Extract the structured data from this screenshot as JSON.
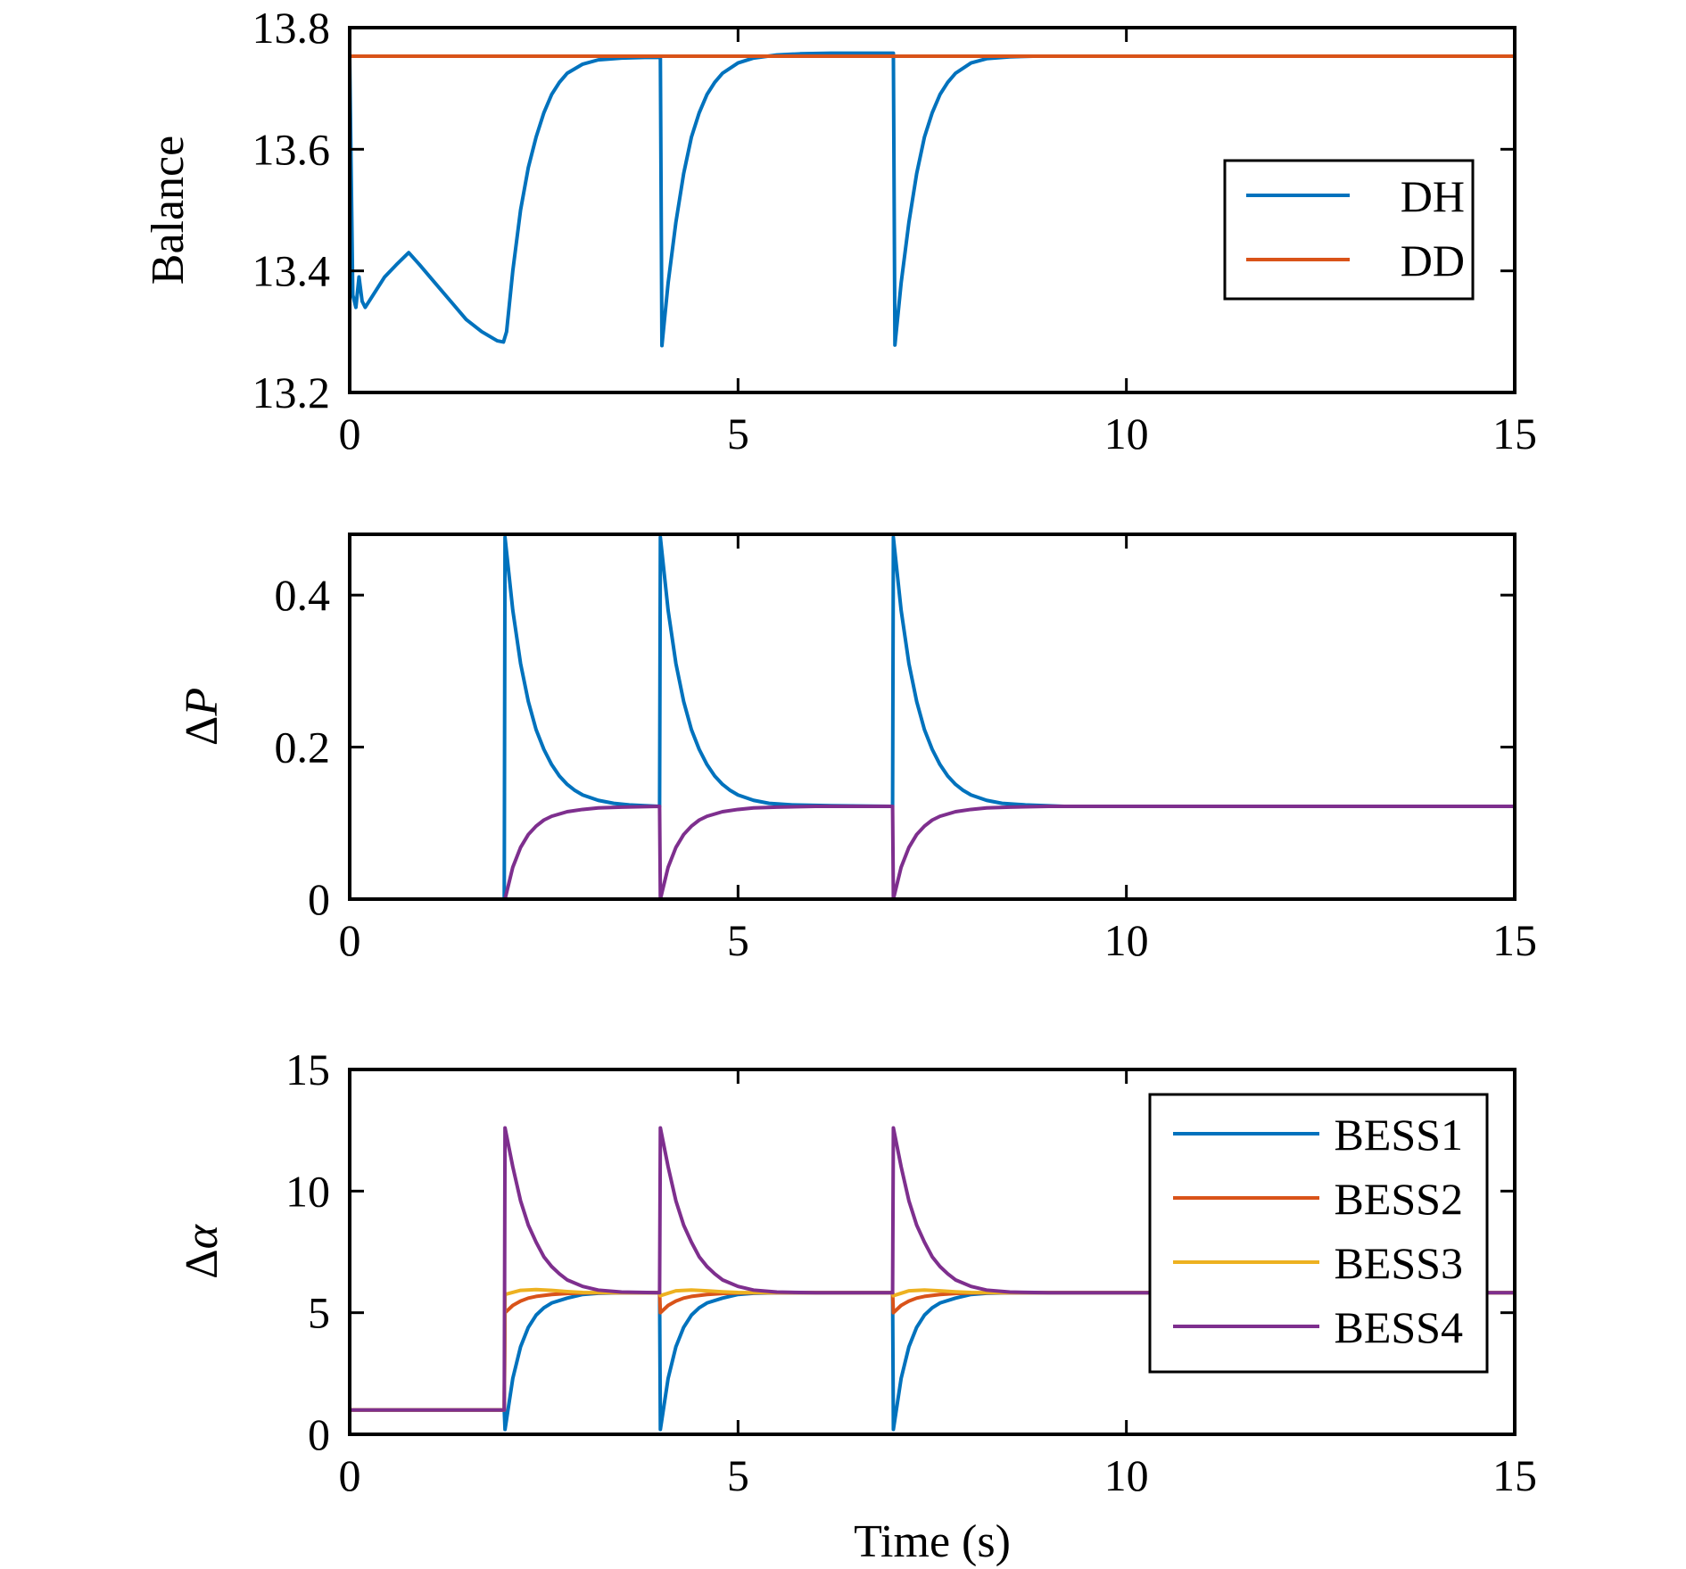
{
  "colors": {
    "blue": "#0072BD",
    "orange": "#D95319",
    "yellow": "#EDB120",
    "purple": "#7E2F8E",
    "axis": "#000000",
    "background": "#ffffff"
  },
  "chart_data": [
    {
      "type": "line",
      "ylabel": "Balance",
      "ylabel_style": "plain",
      "xlim": [
        0,
        15
      ],
      "ylim": [
        13.2,
        13.8
      ],
      "xticks": [
        0,
        5,
        10,
        15
      ],
      "yticks": [
        13.2,
        13.4,
        13.6,
        13.8
      ],
      "xtick_labels": [
        "0",
        "5",
        "10",
        "15"
      ],
      "ytick_labels": [
        "13.2",
        "13.4",
        "13.6",
        "13.8"
      ],
      "grid": false,
      "legend": "right",
      "series": [
        {
          "name": "DH",
          "color": "#0072BD",
          "x": [
            0,
            0.04,
            0.08,
            0.12,
            0.16,
            0.2,
            0.3,
            0.45,
            0.6,
            0.76,
            0.9,
            1.1,
            1.3,
            1.5,
            1.7,
            1.9,
            1.98,
            2.02,
            2.1,
            2.2,
            2.3,
            2.4,
            2.5,
            2.6,
            2.7,
            2.8,
            3.0,
            3.2,
            3.5,
            3.8,
            3.99,
            4.0,
            4.02,
            4.1,
            4.2,
            4.3,
            4.4,
            4.5,
            4.6,
            4.7,
            4.8,
            5.0,
            5.2,
            5.5,
            5.8,
            6.2,
            6.6,
            6.99,
            7.0,
            7.02,
            7.1,
            7.2,
            7.3,
            7.4,
            7.5,
            7.6,
            7.7,
            7.8,
            8.0,
            8.2,
            8.5,
            8.8,
            9.5,
            15
          ],
          "y": [
            13.75,
            13.36,
            13.34,
            13.39,
            13.35,
            13.34,
            13.36,
            13.39,
            13.41,
            13.43,
            13.41,
            13.38,
            13.35,
            13.32,
            13.3,
            13.285,
            13.283,
            13.3,
            13.4,
            13.5,
            13.57,
            13.62,
            13.66,
            13.69,
            13.71,
            13.725,
            13.74,
            13.747,
            13.75,
            13.751,
            13.751,
            13.752,
            13.277,
            13.38,
            13.48,
            13.56,
            13.62,
            13.66,
            13.69,
            13.71,
            13.725,
            13.742,
            13.75,
            13.755,
            13.757,
            13.758,
            13.758,
            13.758,
            13.758,
            13.278,
            13.38,
            13.48,
            13.56,
            13.62,
            13.66,
            13.69,
            13.71,
            13.725,
            13.742,
            13.749,
            13.752,
            13.753,
            13.753,
            13.753
          ]
        },
        {
          "name": "DD",
          "color": "#D95319",
          "x": [
            0,
            15
          ],
          "y": [
            13.753,
            13.753
          ]
        }
      ]
    },
    {
      "type": "line",
      "ylabel": "ΔP",
      "ylabel_style": "delta-italic",
      "xlim": [
        0,
        15
      ],
      "ylim": [
        0,
        0.48
      ],
      "xticks": [
        0,
        5,
        10,
        15
      ],
      "yticks": [
        0,
        0.2,
        0.4
      ],
      "xtick_labels": [
        "0",
        "5",
        "10",
        "15"
      ],
      "ytick_labels": [
        "0",
        "0.2",
        "0.4"
      ],
      "grid": false,
      "legend": "none",
      "series": [
        {
          "color": "#0072BD",
          "x": [
            0,
            1.99,
            2.0,
            2.1,
            2.2,
            2.3,
            2.4,
            2.5,
            2.6,
            2.7,
            2.8,
            2.9,
            3.0,
            3.2,
            3.4,
            3.6,
            3.8,
            3.99,
            4.0,
            4.1,
            4.2,
            4.3,
            4.4,
            4.5,
            4.6,
            4.7,
            4.8,
            4.9,
            5.0,
            5.2,
            5.4,
            5.7,
            6.2,
            6.99,
            7.0,
            7.1,
            7.2,
            7.3,
            7.4,
            7.5,
            7.6,
            7.7,
            7.8,
            7.9,
            8.0,
            8.2,
            8.4,
            8.7,
            9.2,
            15
          ],
          "y": [
            0,
            0,
            0.476,
            0.38,
            0.31,
            0.26,
            0.223,
            0.197,
            0.177,
            0.162,
            0.151,
            0.143,
            0.137,
            0.13,
            0.126,
            0.124,
            0.123,
            0.122,
            0.476,
            0.38,
            0.31,
            0.26,
            0.223,
            0.197,
            0.177,
            0.162,
            0.151,
            0.143,
            0.137,
            0.13,
            0.126,
            0.124,
            0.123,
            0.122,
            0.476,
            0.38,
            0.31,
            0.26,
            0.223,
            0.197,
            0.177,
            0.162,
            0.151,
            0.143,
            0.137,
            0.13,
            0.126,
            0.124,
            0.122,
            0.122
          ]
        },
        {
          "color": "#7E2F8E",
          "x": [
            0,
            1.99,
            2.0,
            2.1,
            2.2,
            2.3,
            2.4,
            2.5,
            2.6,
            2.8,
            3.0,
            3.2,
            3.5,
            3.99,
            4.0,
            4.1,
            4.2,
            4.3,
            4.4,
            4.5,
            4.6,
            4.8,
            5.0,
            5.2,
            5.5,
            6.0,
            6.99,
            7.0,
            7.1,
            7.2,
            7.3,
            7.4,
            7.5,
            7.6,
            7.8,
            8.0,
            8.2,
            8.5,
            9.0,
            15
          ],
          "y": [
            0,
            0,
            0,
            0.042,
            0.068,
            0.085,
            0.096,
            0.104,
            0.109,
            0.115,
            0.118,
            0.12,
            0.121,
            0.122,
            0,
            0.042,
            0.068,
            0.085,
            0.096,
            0.104,
            0.109,
            0.115,
            0.118,
            0.12,
            0.121,
            0.122,
            0.122,
            0,
            0.042,
            0.068,
            0.085,
            0.096,
            0.104,
            0.109,
            0.115,
            0.118,
            0.12,
            0.121,
            0.122,
            0.122
          ]
        }
      ]
    },
    {
      "type": "line",
      "ylabel": "Δα",
      "ylabel_style": "delta-italic",
      "xlabel": "Time (s)",
      "xlim": [
        0,
        15
      ],
      "ylim": [
        0,
        15
      ],
      "xticks": [
        0,
        5,
        10,
        15
      ],
      "yticks": [
        0,
        5,
        10,
        15
      ],
      "xtick_labels": [
        "0",
        "5",
        "10",
        "15"
      ],
      "ytick_labels": [
        "0",
        "5",
        "10",
        "15"
      ],
      "grid": false,
      "legend": "right",
      "series": [
        {
          "name": "BESS1",
          "color": "#0072BD",
          "x": [
            0,
            1.99,
            2.0,
            2.1,
            2.2,
            2.3,
            2.4,
            2.5,
            2.6,
            2.8,
            3.0,
            3.2,
            3.5,
            3.99,
            4.0,
            4.1,
            4.2,
            4.3,
            4.4,
            4.5,
            4.6,
            4.8,
            5.0,
            5.2,
            5.5,
            6.0,
            6.99,
            7.0,
            7.1,
            7.2,
            7.3,
            7.4,
            7.5,
            7.6,
            7.8,
            8.0,
            8.2,
            8.5,
            9.0,
            15
          ],
          "y": [
            1.0,
            1.0,
            0.2,
            2.3,
            3.6,
            4.4,
            4.9,
            5.2,
            5.4,
            5.6,
            5.75,
            5.8,
            5.82,
            5.82,
            0.2,
            2.3,
            3.6,
            4.4,
            4.9,
            5.2,
            5.4,
            5.6,
            5.75,
            5.8,
            5.82,
            5.82,
            5.82,
            0.2,
            2.3,
            3.6,
            4.4,
            4.9,
            5.2,
            5.4,
            5.6,
            5.75,
            5.8,
            5.82,
            5.82,
            5.82
          ]
        },
        {
          "name": "BESS2",
          "color": "#D95319",
          "x": [
            0,
            1.99,
            2.0,
            2.1,
            2.2,
            2.3,
            2.4,
            2.6,
            2.8,
            3.0,
            3.3,
            3.99,
            4.0,
            4.1,
            4.2,
            4.3,
            4.4,
            4.6,
            4.8,
            5.0,
            5.3,
            6.99,
            7.0,
            7.1,
            7.2,
            7.3,
            7.4,
            7.6,
            7.8,
            8.0,
            8.3,
            15
          ],
          "y": [
            1.0,
            1.0,
            5.0,
            5.3,
            5.48,
            5.6,
            5.67,
            5.75,
            5.79,
            5.81,
            5.82,
            5.82,
            5.0,
            5.3,
            5.48,
            5.6,
            5.67,
            5.75,
            5.79,
            5.81,
            5.82,
            5.82,
            5.0,
            5.3,
            5.48,
            5.6,
            5.67,
            5.75,
            5.79,
            5.81,
            5.82,
            5.82
          ]
        },
        {
          "name": "BESS3",
          "color": "#EDB120",
          "x": [
            0,
            1.99,
            2.0,
            2.2,
            2.4,
            2.6,
            2.8,
            3.0,
            3.99,
            4.0,
            4.2,
            4.4,
            4.6,
            4.8,
            5.0,
            6.99,
            7.0,
            7.2,
            7.4,
            7.6,
            7.8,
            8.0,
            15
          ],
          "y": [
            1.0,
            1.0,
            5.75,
            5.92,
            5.95,
            5.92,
            5.87,
            5.83,
            5.82,
            5.7,
            5.9,
            5.93,
            5.9,
            5.86,
            5.83,
            5.82,
            5.7,
            5.9,
            5.93,
            5.9,
            5.86,
            5.83,
            5.82
          ]
        },
        {
          "name": "BESS4",
          "color": "#7E2F8E",
          "x": [
            0,
            1.99,
            2.0,
            2.1,
            2.2,
            2.3,
            2.4,
            2.5,
            2.6,
            2.7,
            2.8,
            3.0,
            3.2,
            3.5,
            3.99,
            4.0,
            4.1,
            4.2,
            4.3,
            4.4,
            4.5,
            4.6,
            4.7,
            4.8,
            5.0,
            5.2,
            5.5,
            6.0,
            6.99,
            7.0,
            7.1,
            7.2,
            7.3,
            7.4,
            7.5,
            7.6,
            7.7,
            7.8,
            8.0,
            8.2,
            8.5,
            9.0,
            15
          ],
          "y": [
            1.0,
            1.0,
            12.6,
            11.0,
            9.6,
            8.6,
            7.9,
            7.3,
            6.9,
            6.6,
            6.35,
            6.08,
            5.93,
            5.85,
            5.82,
            12.6,
            11.0,
            9.6,
            8.6,
            7.9,
            7.3,
            6.9,
            6.6,
            6.35,
            6.08,
            5.93,
            5.85,
            5.82,
            5.82,
            12.6,
            11.0,
            9.6,
            8.6,
            7.9,
            7.3,
            6.9,
            6.6,
            6.35,
            6.08,
            5.93,
            5.85,
            5.82,
            5.82
          ]
        }
      ]
    }
  ]
}
